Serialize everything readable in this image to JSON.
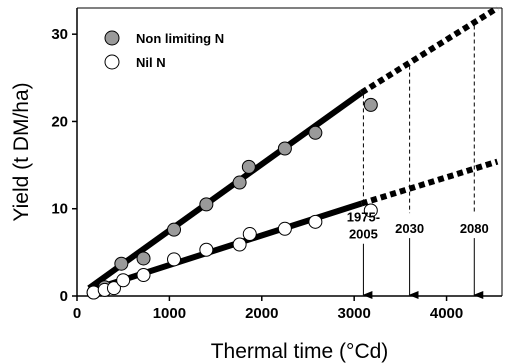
{
  "chart_data": {
    "type": "scatter",
    "xlabel": "Thermal time (°Cd)",
    "ylabel": "Yield (t DM/ha)",
    "xlim": [
      0,
      4600
    ],
    "ylim": [
      0,
      33
    ],
    "x_ticks": [
      "0",
      "1000",
      "2000",
      "3000",
      "4000"
    ],
    "x_tick_values": [
      0,
      1000,
      2000,
      3000,
      4000
    ],
    "y_ticks": [
      "0",
      "10",
      "20",
      "30"
    ],
    "y_tick_values": [
      0,
      10,
      20,
      30
    ],
    "legend_placement": "top-left",
    "grid": false,
    "series": [
      {
        "name": "Non limiting N",
        "marker": "filled-circle",
        "color": "#9a9a9a",
        "points": [
          {
            "x": 180,
            "y": 0.4
          },
          {
            "x": 300,
            "y": 1.0
          },
          {
            "x": 480,
            "y": 3.7
          },
          {
            "x": 720,
            "y": 4.3
          },
          {
            "x": 1050,
            "y": 7.6
          },
          {
            "x": 1400,
            "y": 10.5
          },
          {
            "x": 1760,
            "y": 13.0
          },
          {
            "x": 1860,
            "y": 14.8
          },
          {
            "x": 2250,
            "y": 16.9
          },
          {
            "x": 2580,
            "y": 18.7
          },
          {
            "x": 3180,
            "y": 21.9
          }
        ],
        "fit_line": {
          "x": [
            130,
            3080
          ],
          "y": [
            0.9,
            23.3
          ]
        },
        "projection": {
          "x": [
            3080,
            4550
          ],
          "y": [
            23.3,
            33.0
          ]
        }
      },
      {
        "name": "Nil N",
        "marker": "open-circle",
        "color": "#ffffff",
        "points": [
          {
            "x": 180,
            "y": 0.4
          },
          {
            "x": 300,
            "y": 0.7
          },
          {
            "x": 400,
            "y": 0.9
          },
          {
            "x": 500,
            "y": 1.8
          },
          {
            "x": 720,
            "y": 2.4
          },
          {
            "x": 1050,
            "y": 4.2
          },
          {
            "x": 1400,
            "y": 5.3
          },
          {
            "x": 1760,
            "y": 5.9
          },
          {
            "x": 1870,
            "y": 7.1
          },
          {
            "x": 2250,
            "y": 7.7
          },
          {
            "x": 2580,
            "y": 8.5
          },
          {
            "x": 3180,
            "y": 9.8
          }
        ],
        "fit_line": {
          "x": [
            130,
            3080
          ],
          "y": [
            0.6,
            10.6
          ]
        },
        "projection": {
          "x": [
            3080,
            4550
          ],
          "y": [
            10.6,
            15.4
          ]
        }
      }
    ],
    "annotations": [
      {
        "label_lines": [
          "1975-",
          "2005"
        ],
        "x": 3100,
        "dashed_from_y": 23.1,
        "dashed_to_y": 10.8,
        "arrow_to_y": 0
      },
      {
        "label_lines": [
          "2030"
        ],
        "x": 3600,
        "dashed_from_y": 26.4,
        "dashed_to_y": 9.5,
        "arrow_to_y": 0
      },
      {
        "label_lines": [
          "2080"
        ],
        "x": 4300,
        "dashed_from_y": 31.0,
        "dashed_to_y": 9.5,
        "arrow_to_y": 0
      }
    ]
  }
}
